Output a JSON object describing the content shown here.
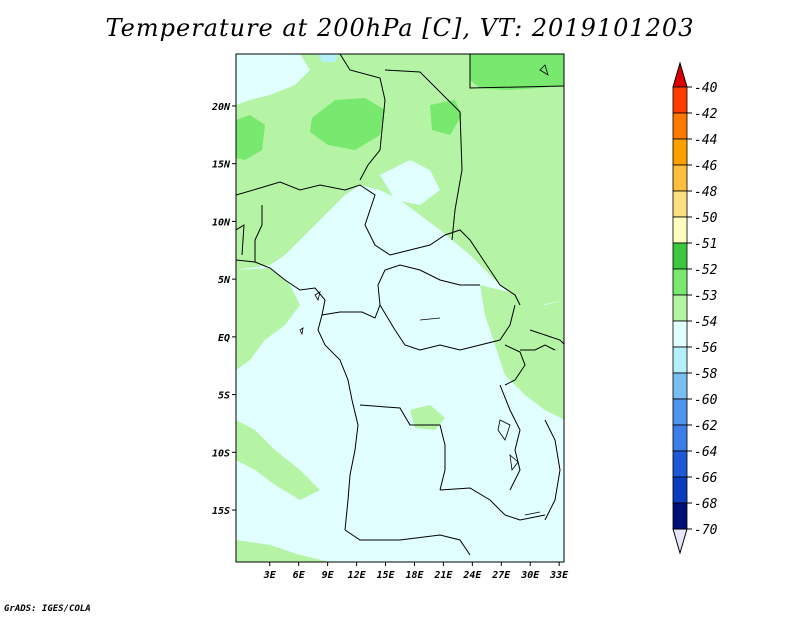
{
  "title": "Temperature at 200hPa [C], VT: 2019101203",
  "credit": "GrADS: IGES/COLA",
  "map": {
    "lat_range": [
      -19.5,
      24.5
    ],
    "lon_range": [
      -0.5,
      33.5
    ],
    "lat_ticks": [
      "20N",
      "15N",
      "10N",
      "5N",
      "EQ",
      "5S",
      "10S",
      "15S"
    ],
    "lat_tick_values": [
      20,
      15,
      10,
      5,
      0,
      -5,
      -10,
      -15
    ],
    "lon_ticks": [
      "3E",
      "6E",
      "9E",
      "12E",
      "15E",
      "18E",
      "21E",
      "24E",
      "27E",
      "30E",
      "33E"
    ],
    "lon_tick_values": [
      3,
      6,
      9,
      12,
      15,
      18,
      21,
      24,
      27,
      30,
      33
    ],
    "background_color": "#e0fffe",
    "field_colors": {
      "light_green": "#b4f4a4",
      "mid_green": "#78e86e",
      "light_cyan": "#e0fffe",
      "pale_blue": "#b4f0fa"
    }
  },
  "colorbar": {
    "labels": [
      "-40",
      "-42",
      "-44",
      "-46",
      "-48",
      "-50",
      "-51",
      "-52",
      "-53",
      "-54",
      "-56",
      "-58",
      "-60",
      "-62",
      "-64",
      "-66",
      "-68",
      "-70"
    ],
    "colors": [
      "#f01000",
      "#ff3c00",
      "#ff7800",
      "#fca000",
      "#fcbe3c",
      "#fce080",
      "#fefcbe",
      "#3cc83c",
      "#78e86e",
      "#b4f4a4",
      "#e0fffe",
      "#b4f0fa",
      "#78bef0",
      "#5096f0",
      "#3c7de8",
      "#1e5ad8",
      "#0c3cbe",
      "#000e78",
      "#0a0050"
    ],
    "top_triangle_color": "#dc0000",
    "bottom_triangle_color": "#e6e6fa"
  }
}
